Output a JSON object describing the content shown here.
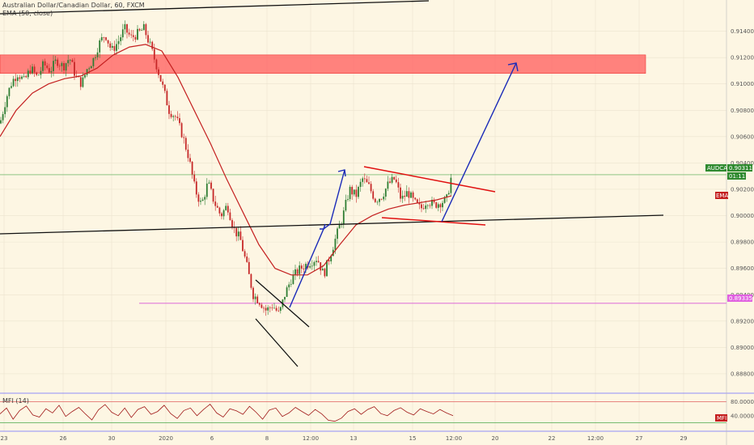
{
  "chart_data": {
    "type": "candlestick",
    "title": "Australian Dollar/Canadian Dollar, 60, FXCM",
    "indicator_label": "EMA (50, close)",
    "symbol": "AUDCAD",
    "last_price": "0.90311",
    "countdown": "01:11",
    "ema_tag": "EMA",
    "magenta_tag": "0.89335",
    "x_ticks": [
      "23",
      "26",
      "30",
      "2020",
      "6",
      "8",
      "12:00",
      "13",
      "15",
      "12:00",
      "20",
      "22",
      "12:00",
      "27",
      "29"
    ],
    "y_ticks": [
      "0.91400",
      "0.91200",
      "0.91000",
      "0.90800",
      "0.90600",
      "0.90400",
      "0.90200",
      "0.90000",
      "0.89800",
      "0.89600",
      "0.89400",
      "0.89200",
      "0.89000",
      "0.88800"
    ],
    "ylim": [
      0.8872,
      0.916
    ],
    "resistance_zone": [
      0.9108,
      0.9122
    ],
    "horizontal_levels": {
      "last_price": 0.90311,
      "magenta": 0.89335
    },
    "close_path": [
      [
        0,
        0.907
      ],
      [
        8,
        0.909
      ],
      [
        15,
        0.9102
      ],
      [
        22,
        0.9108
      ],
      [
        30,
        0.9102
      ],
      [
        38,
        0.9112
      ],
      [
        46,
        0.9105
      ],
      [
        54,
        0.9115
      ],
      [
        62,
        0.911
      ],
      [
        70,
        0.9118
      ],
      [
        78,
        0.9113
      ],
      [
        86,
        0.912
      ],
      [
        94,
        0.9105
      ],
      [
        101,
        0.91
      ],
      [
        108,
        0.9112
      ],
      [
        115,
        0.9118
      ],
      [
        122,
        0.913
      ],
      [
        130,
        0.9138
      ],
      [
        138,
        0.9125
      ],
      [
        146,
        0.9132
      ],
      [
        154,
        0.9142
      ],
      [
        162,
        0.9135
      ],
      [
        170,
        0.9138
      ],
      [
        178,
        0.9142
      ],
      [
        185,
        0.913
      ],
      [
        193,
        0.9115
      ],
      [
        201,
        0.9098
      ],
      [
        209,
        0.908
      ],
      [
        217,
        0.9075
      ],
      [
        225,
        0.9062
      ],
      [
        233,
        0.9045
      ],
      [
        241,
        0.902
      ],
      [
        249,
        0.9008
      ],
      [
        257,
        0.9025
      ],
      [
        265,
        0.901
      ],
      [
        273,
        0.9
      ],
      [
        281,
        0.9008
      ],
      [
        289,
        0.899
      ],
      [
        297,
        0.8982
      ],
      [
        305,
        0.8962
      ],
      [
        313,
        0.894
      ],
      [
        321,
        0.8935
      ],
      [
        329,
        0.8928
      ],
      [
        337,
        0.8932
      ],
      [
        345,
        0.8925
      ],
      [
        352,
        0.894
      ],
      [
        360,
        0.8952
      ],
      [
        368,
        0.8958
      ],
      [
        376,
        0.8962
      ],
      [
        384,
        0.8965
      ],
      [
        392,
        0.8968
      ],
      [
        400,
        0.8955
      ],
      [
        408,
        0.897
      ],
      [
        416,
        0.8985
      ],
      [
        424,
        0.9
      ],
      [
        432,
        0.902
      ],
      [
        440,
        0.9015
      ],
      [
        448,
        0.9028
      ],
      [
        456,
        0.9022
      ],
      [
        464,
        0.9012
      ],
      [
        472,
        0.9015
      ],
      [
        480,
        0.9024
      ],
      [
        488,
        0.9028
      ],
      [
        496,
        0.9012
      ],
      [
        504,
        0.9018
      ],
      [
        512,
        0.901
      ],
      [
        520,
        0.9005
      ],
      [
        528,
        0.9012
      ],
      [
        536,
        0.9008
      ],
      [
        544,
        0.901
      ],
      [
        552,
        0.9012
      ],
      [
        558,
        0.903
      ]
    ],
    "ema_path": [
      [
        0,
        0.906
      ],
      [
        20,
        0.908
      ],
      [
        40,
        0.9093
      ],
      [
        60,
        0.91
      ],
      [
        80,
        0.9104
      ],
      [
        100,
        0.9106
      ],
      [
        120,
        0.9112
      ],
      [
        140,
        0.9122
      ],
      [
        160,
        0.9128
      ],
      [
        180,
        0.913
      ],
      [
        200,
        0.9125
      ],
      [
        220,
        0.9105
      ],
      [
        240,
        0.908
      ],
      [
        260,
        0.9055
      ],
      [
        280,
        0.9028
      ],
      [
        300,
        0.9003
      ],
      [
        320,
        0.8978
      ],
      [
        340,
        0.896
      ],
      [
        360,
        0.8955
      ],
      [
        380,
        0.8955
      ],
      [
        400,
        0.8962
      ],
      [
        420,
        0.8978
      ],
      [
        440,
        0.8993
      ],
      [
        460,
        0.9
      ],
      [
        480,
        0.9005
      ],
      [
        500,
        0.9008
      ],
      [
        520,
        0.901
      ],
      [
        540,
        0.9012
      ],
      [
        558,
        0.9015
      ]
    ],
    "mfi_panel": {
      "label": "MFI (14)",
      "ylim": [
        0,
        100
      ],
      "y_ticks": [
        "80.0000",
        "40.0000"
      ],
      "bands": [
        80,
        20
      ],
      "tag": "MFI",
      "values": [
        45,
        62,
        30,
        55,
        68,
        42,
        36,
        60,
        48,
        70,
        38,
        52,
        64,
        45,
        28,
        57,
        72,
        50,
        40,
        62,
        35,
        58,
        66,
        44,
        52,
        70,
        46,
        32,
        55,
        62,
        40,
        58,
        73,
        48,
        36,
        60,
        54,
        44,
        67,
        50,
        30,
        56,
        62,
        38,
        48,
        64,
        52,
        41,
        58,
        45,
        27,
        24,
        33,
        52,
        60,
        44,
        58,
        66,
        46,
        40,
        55,
        63,
        50,
        42,
        60,
        52,
        45,
        58,
        48,
        40
      ]
    }
  }
}
